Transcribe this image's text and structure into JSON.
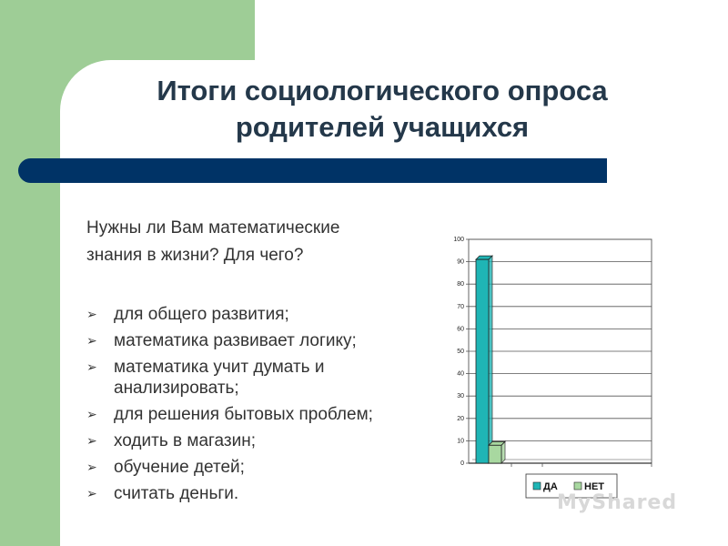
{
  "slide": {
    "title_line1": "Итоги социологического опроса",
    "title_line2": "родителей учащихся",
    "question_line1": "Нужны ли Вам математические",
    "question_line2": "знания в жизни? Для чего?",
    "bullets": [
      "для общего развития;",
      "математика развивает логику;",
      "математика учит думать и анализировать;",
      "для решения бытовых проблем;",
      "ходить в магазин;",
      "обучение детей;",
      "считать деньги."
    ],
    "bullet_glyph": "➢",
    "watermark": "MyShared"
  },
  "chart_data": {
    "type": "bar",
    "ylim": [
      0,
      100
    ],
    "yticks": [
      "0",
      "10",
      "20",
      "30",
      "40",
      "50",
      "60",
      "70",
      "80",
      "90",
      "100"
    ],
    "series": [
      {
        "name": "ДА",
        "values": [
          91
        ],
        "color": "#1fb5b5"
      },
      {
        "name": "НЕТ",
        "values": [
          8
        ],
        "color": "#a8d8a0"
      }
    ],
    "grid": true,
    "legend": "bottom"
  }
}
